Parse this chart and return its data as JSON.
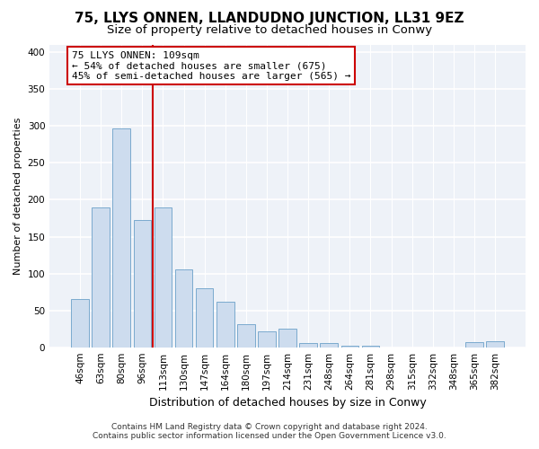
{
  "title": "75, LLYS ONNEN, LLANDUDNO JUNCTION, LL31 9EZ",
  "subtitle": "Size of property relative to detached houses in Conwy",
  "xlabel": "Distribution of detached houses by size in Conwy",
  "ylabel": "Number of detached properties",
  "bar_labels": [
    "46sqm",
    "63sqm",
    "80sqm",
    "96sqm",
    "113sqm",
    "130sqm",
    "147sqm",
    "164sqm",
    "180sqm",
    "197sqm",
    "214sqm",
    "231sqm",
    "248sqm",
    "264sqm",
    "281sqm",
    "298sqm",
    "315sqm",
    "332sqm",
    "348sqm",
    "365sqm",
    "382sqm"
  ],
  "bar_values": [
    65,
    190,
    297,
    172,
    190,
    106,
    80,
    62,
    31,
    21,
    25,
    6,
    6,
    2,
    2,
    0,
    0,
    0,
    0,
    7,
    8
  ],
  "bar_color": "#cddcee",
  "bar_edge_color": "#7aaace",
  "vline_position": 3.5,
  "vline_color": "#cc0000",
  "annotation_text": "75 LLYS ONNEN: 109sqm\n← 54% of detached houses are smaller (675)\n45% of semi-detached houses are larger (565) →",
  "annotation_box_edgecolor": "#cc0000",
  "annotation_box_facecolor": "white",
  "ylim": [
    0,
    410
  ],
  "yticks": [
    0,
    50,
    100,
    150,
    200,
    250,
    300,
    350,
    400
  ],
  "footer_line1": "Contains HM Land Registry data © Crown copyright and database right 2024.",
  "footer_line2": "Contains public sector information licensed under the Open Government Licence v3.0.",
  "title_fontsize": 11,
  "subtitle_fontsize": 9.5,
  "xlabel_fontsize": 9,
  "ylabel_fontsize": 8,
  "tick_fontsize": 7.5,
  "annotation_fontsize": 8,
  "footer_fontsize": 6.5,
  "background_color": "#ffffff",
  "plot_bg_color": "#eef2f8"
}
